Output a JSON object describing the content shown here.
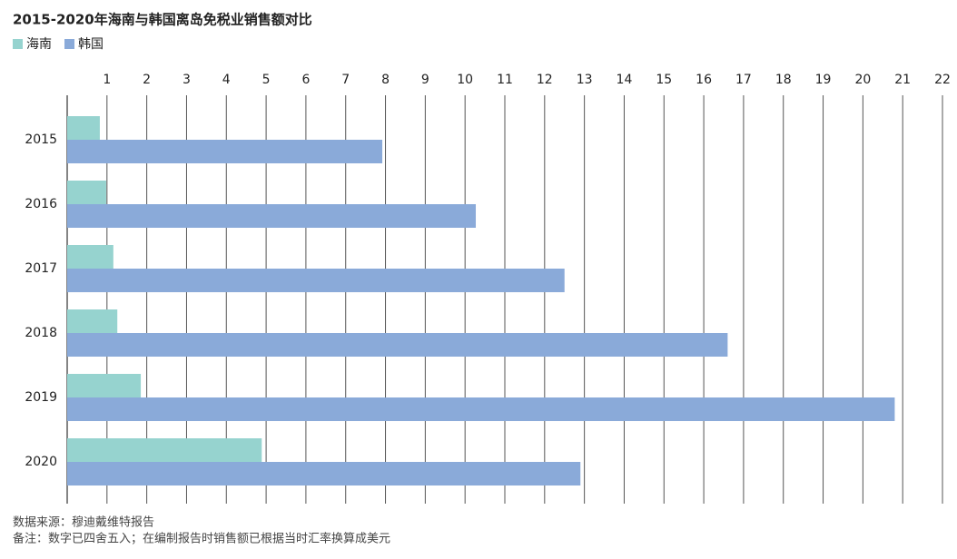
{
  "chart_data": {
    "type": "hbar",
    "title": "2015-2020年海南与韩国离岛免税业销售额对比",
    "categories": [
      "2015",
      "2016",
      "2017",
      "2018",
      "2019",
      "2020"
    ],
    "series": [
      {
        "name": "海南",
        "color": "#96d3cf",
        "values": [
          0.82,
          0.98,
          1.16,
          1.26,
          1.85,
          4.89
        ]
      },
      {
        "name": "韩国",
        "color": "#8aaad9",
        "values": [
          7.92,
          10.27,
          12.5,
          16.6,
          20.8,
          12.9
        ]
      }
    ],
    "xlim": [
      0,
      22
    ],
    "xticks": [
      1,
      2,
      3,
      4,
      5,
      6,
      7,
      8,
      9,
      10,
      11,
      12,
      13,
      14,
      15,
      16,
      17,
      18,
      19,
      20,
      21,
      22
    ],
    "grid": true,
    "source": "数据来源：穆迪戴维特报告",
    "note": "备注：数字已四舍五入；在编制报告时销售额已根据当时汇率换算成美元"
  }
}
